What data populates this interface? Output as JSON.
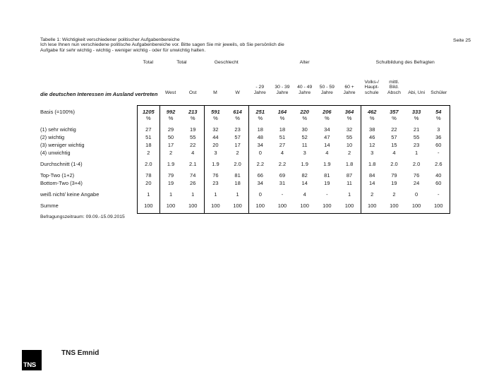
{
  "page": {
    "seite": "Seite 25",
    "title_line1": "Tabelle 1: Wichtigkeit verschiedener politischer Aufgabenbereiche",
    "title_line2": "Ich lese Ihnen nun verschiedene politische Aufgabenbereiche vor. Bitte sagen Sie mir jeweils, ob Sie persönlich die",
    "title_line3": "Aufgabe für sehr wichtig - wichtig - weniger wichtig - oder für unwichtig halten.",
    "section_title": "die deutschen Interessen im Ausland vertreten",
    "footnote": "Befragungszeitraum: 09.09.-15.09.2015",
    "logo_text": "TNS",
    "brand": "TNS Emnid"
  },
  "table": {
    "groups": [
      {
        "label": "Total",
        "span": 1
      },
      {
        "label": "Total",
        "span": 2
      },
      {
        "label": "Geschlecht",
        "span": 2
      },
      {
        "label": "Alter",
        "span": 5
      },
      {
        "label": "Schulbildung des Befragten",
        "span": 4
      }
    ],
    "columns": [
      "",
      "West",
      "Ost",
      "M",
      "W",
      "- 29\nJahre",
      "30 - 39\nJahre",
      "40 - 49\nJahre",
      "50 - 59\nJahre",
      "60 +\nJahre",
      "Volks-/\nHaupt-\nschule",
      "mittl.\nBild.\nAbsch",
      "Abi, Uni",
      "Schüler"
    ],
    "basis_label": "Basis (=100%)",
    "percent_symbol": "%",
    "basis_values": [
      "1205",
      "992",
      "213",
      "591",
      "614",
      "251",
      "164",
      "220",
      "206",
      "364",
      "462",
      "357",
      "333",
      "54"
    ],
    "rows": [
      {
        "label": "(1) sehr wichtig",
        "gap": false,
        "values": [
          "27",
          "29",
          "19",
          "32",
          "23",
          "18",
          "18",
          "30",
          "34",
          "32",
          "38",
          "22",
          "21",
          "3"
        ]
      },
      {
        "label": "(2) wichtig",
        "gap": false,
        "values": [
          "51",
          "50",
          "55",
          "44",
          "57",
          "48",
          "51",
          "52",
          "47",
          "55",
          "46",
          "57",
          "55",
          "36"
        ]
      },
      {
        "label": "(3) weniger wichtig",
        "gap": false,
        "values": [
          "18",
          "17",
          "22",
          "20",
          "17",
          "34",
          "27",
          "11",
          "14",
          "10",
          "12",
          "15",
          "23",
          "60"
        ]
      },
      {
        "label": "(4) unwichtig",
        "gap": false,
        "values": [
          "2",
          "2",
          "4",
          "3",
          "2",
          "0",
          "4",
          "3",
          "4",
          "2",
          "3",
          "4",
          "1",
          "-"
        ]
      },
      {
        "label": "Durchschnitt (1-4)",
        "gap": true,
        "values": [
          "2.0",
          "1.9",
          "2.1",
          "1.9",
          "2.0",
          "2.2",
          "2.2",
          "1.9",
          "1.9",
          "1.8",
          "1.8",
          "2.0",
          "2.0",
          "2.6"
        ]
      },
      {
        "label": "Top-Two (1+2)",
        "gap": true,
        "values": [
          "78",
          "79",
          "74",
          "76",
          "81",
          "66",
          "69",
          "82",
          "81",
          "87",
          "84",
          "79",
          "76",
          "40"
        ]
      },
      {
        "label": "Bottom-Two (3+4)",
        "gap": false,
        "values": [
          "20",
          "19",
          "26",
          "23",
          "18",
          "34",
          "31",
          "14",
          "19",
          "11",
          "14",
          "19",
          "24",
          "60"
        ]
      },
      {
        "label": "weiß nicht/ keine Angabe",
        "gap": true,
        "values": [
          "1",
          "1",
          "1",
          "1",
          "1",
          "0",
          "-",
          "4",
          "-",
          "1",
          "2",
          "2",
          "0",
          "-"
        ]
      },
      {
        "label": "Summe",
        "gap": true,
        "values": [
          "100",
          "100",
          "100",
          "100",
          "100",
          "100",
          "100",
          "100",
          "100",
          "100",
          "100",
          "100",
          "100",
          "100"
        ]
      }
    ]
  }
}
